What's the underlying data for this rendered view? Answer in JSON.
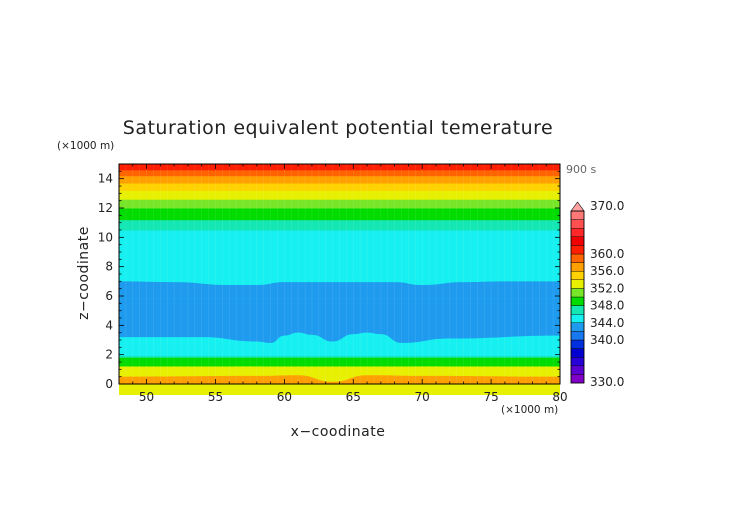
{
  "chart_data": {
    "type": "heatmap",
    "title": "Saturation equivalent potential temerature",
    "xlabel": "x−coodinate",
    "ylabel": "z−coodinate",
    "x_unit": "(×1000 m)",
    "y_unit": "(×1000 m)",
    "time_label": "900 s",
    "xlim": [
      48,
      80
    ],
    "ylim": [
      0,
      15
    ],
    "x_ticks": [
      50,
      55,
      60,
      65,
      70,
      75,
      80
    ],
    "y_ticks": [
      0,
      2,
      4,
      6,
      8,
      10,
      12,
      14
    ],
    "grid": false,
    "colorbar": {
      "labels": [
        "370.0",
        "360.0",
        "356.0",
        "352.0",
        "348.0",
        "344.0",
        "340.0",
        "330.0"
      ],
      "min": 330,
      "max": 370,
      "levels": [
        {
          "lo": 330,
          "hi": 332,
          "color": "#8000c8"
        },
        {
          "lo": 332,
          "hi": 334,
          "color": "#5a00d0"
        },
        {
          "lo": 334,
          "hi": 336,
          "color": "#2800d8"
        },
        {
          "lo": 336,
          "hi": 338,
          "color": "#0000d0"
        },
        {
          "lo": 338,
          "hi": 340,
          "color": "#0030e0"
        },
        {
          "lo": 340,
          "hi": 342,
          "color": "#1878f0"
        },
        {
          "lo": 342,
          "hi": 344,
          "color": "#1e9bef"
        },
        {
          "lo": 344,
          "hi": 346,
          "color": "#16f0f0"
        },
        {
          "lo": 346,
          "hi": 348,
          "color": "#14e6b4"
        },
        {
          "lo": 348,
          "hi": 350,
          "color": "#00dc00"
        },
        {
          "lo": 350,
          "hi": 352,
          "color": "#78e628"
        },
        {
          "lo": 352,
          "hi": 354,
          "color": "#e6f000"
        },
        {
          "lo": 354,
          "hi": 356,
          "color": "#ffd200"
        },
        {
          "lo": 356,
          "hi": 358,
          "color": "#ffa000"
        },
        {
          "lo": 358,
          "hi": 360,
          "color": "#ff6400"
        },
        {
          "lo": 360,
          "hi": 362,
          "color": "#ff1e00"
        },
        {
          "lo": 362,
          "hi": 364,
          "color": "#f00000"
        },
        {
          "lo": 364,
          "hi": 366,
          "color": "#ff2828"
        },
        {
          "lo": 366,
          "hi": 368,
          "color": "#ff5050"
        },
        {
          "lo": 368,
          "hi": 370,
          "color": "#ff7878"
        }
      ],
      "over_color": "#ffa0a0"
    },
    "bands": [
      {
        "z0": 0.0,
        "z1": 0.3,
        "value": 361
      },
      {
        "z0": 0.3,
        "z1": 0.5,
        "value": 357
      },
      {
        "z0": 0.5,
        "z1": 0.8,
        "value": 353
      },
      {
        "z0": 0.8,
        "z1": 1.0,
        "value": 351
      },
      {
        "z0": 1.0,
        "z1": 1.3,
        "value": 349
      },
      {
        "z0": 1.3,
        "z1": 2.2,
        "value": 347
      },
      {
        "z0": 2.2,
        "z1": 3.0,
        "value": 345
      },
      {
        "z0": 3.0,
        "z1": 7.0,
        "value": 343
      },
      {
        "z0": 7.0,
        "z1": 10.5,
        "value": 345
      },
      {
        "z0": 10.5,
        "z1": 11.2,
        "value": 347
      },
      {
        "z0": 11.2,
        "z1": 12.0,
        "value": 349
      },
      {
        "z0": 12.0,
        "z1": 12.6,
        "value": 351
      },
      {
        "z0": 12.6,
        "z1": 13.2,
        "value": 353
      },
      {
        "z0": 13.2,
        "z1": 13.7,
        "value": 355
      },
      {
        "z0": 13.7,
        "z1": 14.2,
        "value": 357
      },
      {
        "z0": 14.2,
        "z1": 14.6,
        "value": 359
      },
      {
        "z0": 14.6,
        "z1": 15.0,
        "value": 361
      }
    ],
    "boundaries": [
      {
        "value_below": 343,
        "value_above": 345,
        "z": [
          [
            48,
            7.0
          ],
          [
            52,
            6.95
          ],
          [
            56,
            6.75
          ],
          [
            58,
            6.75
          ],
          [
            60,
            6.95
          ],
          [
            64,
            6.95
          ],
          [
            68,
            6.95
          ],
          [
            70,
            6.75
          ],
          [
            73,
            6.95
          ],
          [
            76,
            7.0
          ],
          [
            80,
            7.0
          ]
        ]
      },
      {
        "value_below": 345,
        "value_above": 343,
        "z": [
          [
            48,
            3.2
          ],
          [
            54,
            3.2
          ],
          [
            58,
            2.9
          ],
          [
            59,
            2.8
          ],
          [
            60,
            3.3
          ],
          [
            61,
            3.5
          ],
          [
            62,
            3.35
          ],
          [
            63.5,
            2.9
          ],
          [
            65,
            3.4
          ],
          [
            66,
            3.5
          ],
          [
            67,
            3.4
          ],
          [
            68.5,
            2.8
          ],
          [
            72,
            3.1
          ],
          [
            80,
            3.3
          ]
        ]
      },
      {
        "value_below": 351,
        "value_above": 349,
        "z": [
          [
            48,
            1.1
          ],
          [
            58,
            1.2
          ],
          [
            61,
            1.1
          ],
          [
            63.5,
            0.6
          ],
          [
            66,
            1.1
          ],
          [
            70,
            1.2
          ],
          [
            80,
            1.1
          ]
        ]
      },
      {
        "value_below": 357,
        "value_above": 353,
        "z": [
          [
            48,
            0.5
          ],
          [
            58,
            0.55
          ],
          [
            61,
            0.6
          ],
          [
            63.5,
            0.15
          ],
          [
            66,
            0.6
          ],
          [
            70,
            0.55
          ],
          [
            80,
            0.5
          ]
        ]
      }
    ]
  }
}
